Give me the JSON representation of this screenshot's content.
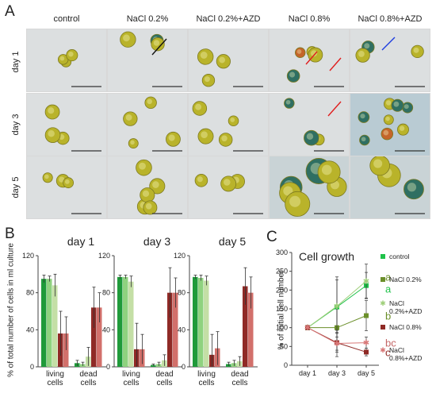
{
  "panelA": {
    "letter": "A",
    "columns": [
      "control",
      "NaCl 0.2%",
      "NaCl 0.2%+AZD",
      "NaCl 0.8%",
      "NaCl 0.8%+AZD"
    ],
    "rows": [
      "day 1",
      "day 3",
      "day 5"
    ]
  },
  "panelB": {
    "letter": "B",
    "ylabel": "% of total number of cells in ml culture",
    "colors": [
      "#1f9a3a",
      "#8fd27f",
      "#c4dfa6",
      "#8f2a26",
      "#d2706b",
      "#e8a8a2"
    ],
    "chart_data": [
      {
        "type": "bar",
        "title": "day 1",
        "categories": [
          "living cells",
          "dead cells"
        ],
        "ylim": [
          0,
          120
        ],
        "yticks": [
          "0",
          "40",
          "80",
          "120"
        ],
        "series": [
          {
            "values": [
              95,
              4
            ],
            "errors": [
              4,
              3
            ]
          },
          {
            "values": [
              95,
              3
            ],
            "errors": [
              3,
              2
            ]
          },
          {
            "values": [
              88,
              11
            ],
            "errors": [
              12,
              10
            ]
          },
          {
            "values": [
              36,
              64
            ],
            "errors": [
              24,
              22
            ]
          },
          {
            "values": [
              36,
              64
            ],
            "errors": [
              18,
              16
            ]
          }
        ]
      },
      {
        "type": "bar",
        "title": "day 3",
        "categories": [
          "living cells",
          "dead cells"
        ],
        "ylim": [
          0,
          120
        ],
        "yticks": [
          "0",
          "40",
          "80",
          "120"
        ],
        "series": [
          {
            "values": [
              97,
              2
            ],
            "errors": [
              2,
              1
            ]
          },
          {
            "values": [
              97,
              3
            ],
            "errors": [
              2,
              2
            ]
          },
          {
            "values": [
              92,
              7
            ],
            "errors": [
              6,
              6
            ]
          },
          {
            "values": [
              19,
              80
            ],
            "errors": [
              28,
              27
            ]
          },
          {
            "values": [
              19,
              80
            ],
            "errors": [
              16,
              16
            ]
          }
        ]
      },
      {
        "type": "bar",
        "title": "day 5",
        "categories": [
          "living cells",
          "dead cells"
        ],
        "ylim": [
          0,
          120
        ],
        "yticks": [
          "0",
          "40",
          "80",
          "120"
        ],
        "series": [
          {
            "values": [
              97,
              3
            ],
            "errors": [
              2,
              2
            ]
          },
          {
            "values": [
              96,
              4
            ],
            "errors": [
              3,
              3
            ]
          },
          {
            "values": [
              93,
              6
            ],
            "errors": [
              5,
              5
            ]
          },
          {
            "values": [
              13,
              87
            ],
            "errors": [
              22,
              20
            ]
          },
          {
            "values": [
              20,
              80
            ],
            "errors": [
              18,
              17
            ]
          }
        ]
      }
    ]
  },
  "panelC": {
    "letter": "C",
    "ylabel": "% of initial cell number",
    "chart_data": {
      "type": "line",
      "title": "Cell growth",
      "x": [
        "day 1",
        "day 3",
        "day 5"
      ],
      "ylim": [
        0,
        300
      ],
      "yticks": [
        "0",
        "50",
        "100",
        "150",
        "200",
        "250",
        "300"
      ],
      "series": [
        {
          "name": "control",
          "color": "#1fc24a",
          "marker": "square",
          "values": [
            100,
            155,
            212
          ],
          "errors": [
            0,
            80,
            35
          ]
        },
        {
          "name": "NaCl 0.2%",
          "color": "#6b8f2a",
          "marker": "square",
          "values": [
            100,
            100,
            132
          ],
          "errors": [
            0,
            60,
            40
          ]
        },
        {
          "name": "NaCl 0.2%+AZD",
          "color": "#9fcf7a",
          "marker": "star",
          "values": [
            100,
            157,
            224
          ],
          "errors": [
            0,
            70,
            45
          ]
        },
        {
          "name": "NaCl 0.8%",
          "color": "#8f2a26",
          "marker": "square",
          "values": [
            100,
            60,
            35
          ],
          "errors": [
            0,
            25,
            10
          ]
        },
        {
          "name": "NaCl 0.8%+AZD",
          "color": "#d87878",
          "marker": "star",
          "values": [
            100,
            58,
            60
          ],
          "errors": [
            0,
            35,
            15
          ]
        }
      ],
      "legend": [
        "control",
        "NaCl 0.2%",
        "NaCl 0.2%+AZD",
        "NaCl 0.8%",
        "NaCl 0.8%+AZD"
      ],
      "legend_lines": [
        [
          "control"
        ],
        [
          "NaCl 0.2%"
        ],
        [
          "NaCl",
          "0.2%+AZD"
        ],
        [
          "NaCl 0.8%"
        ],
        [
          "NaCl",
          "0.8%+AZD"
        ]
      ],
      "letters": [
        "a",
        "a",
        "b",
        "bc",
        "c"
      ],
      "letter_colors": [
        "#6b8f2a",
        "#1fc24a",
        "#6b8f2a",
        "#c46868",
        "#8f2a26"
      ]
    }
  }
}
